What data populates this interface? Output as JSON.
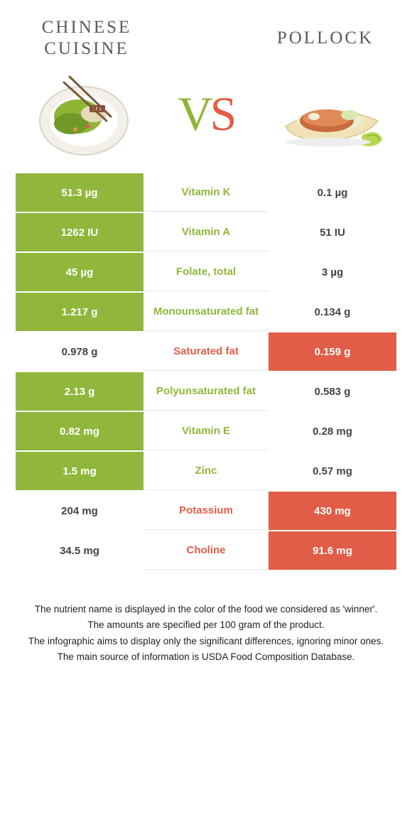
{
  "colors": {
    "food_a": "#90b73b",
    "food_b": "#e25d47",
    "title_text": "#5a5a5a"
  },
  "header": {
    "food_a_title": "Chinese cuisine",
    "food_b_title": "Pollock",
    "vs_v": "V",
    "vs_s": "S"
  },
  "rows": [
    {
      "nutrient": "Vitamin K",
      "a": "51.3 µg",
      "b": "0.1 µg",
      "winner": "a"
    },
    {
      "nutrient": "Vitamin A",
      "a": "1262 IU",
      "b": "51 IU",
      "winner": "a"
    },
    {
      "nutrient": "Folate, total",
      "a": "45 µg",
      "b": "3 µg",
      "winner": "a"
    },
    {
      "nutrient": "Monounsaturated fat",
      "a": "1.217 g",
      "b": "0.134 g",
      "winner": "a"
    },
    {
      "nutrient": "Saturated fat",
      "a": "0.978 g",
      "b": "0.159 g",
      "winner": "b"
    },
    {
      "nutrient": "Polyunsaturated fat",
      "a": "2.13 g",
      "b": "0.583 g",
      "winner": "a"
    },
    {
      "nutrient": "Vitamin E",
      "a": "0.82 mg",
      "b": "0.28 mg",
      "winner": "a"
    },
    {
      "nutrient": "Zinc",
      "a": "1.5 mg",
      "b": "0.57 mg",
      "winner": "a"
    },
    {
      "nutrient": "Potassium",
      "a": "204 mg",
      "b": "430 mg",
      "winner": "b"
    },
    {
      "nutrient": "Choline",
      "a": "34.5 mg",
      "b": "91.6 mg",
      "winner": "b"
    }
  ],
  "footnote": {
    "line1": "The nutrient name is displayed in the color of the food we considered as 'winner'.",
    "line2": "The amounts are specified per 100 gram of the product.",
    "line3": "The infographic aims to display only the significant differences, ignoring minor ones.",
    "line4": "The main source of information is USDA Food Composition Database."
  }
}
